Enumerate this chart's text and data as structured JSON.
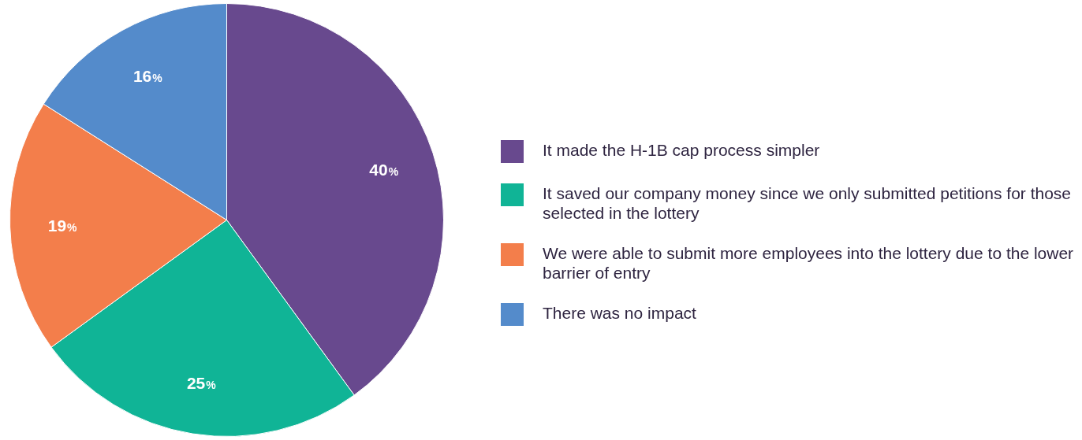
{
  "chart_data": {
    "type": "pie",
    "categories": [
      "It made the H-1B cap process simpler",
      "It saved our company money since we only submitted petitions for those selected in the lottery",
      "We were able to submit more employees into the lottery due to the lower barrier of entry",
      "There was no impact"
    ],
    "values": [
      40,
      25,
      19,
      16
    ],
    "colors": [
      "#68498e",
      "#10b496",
      "#f37e4b",
      "#548bcb"
    ],
    "value_labels": [
      "40%",
      "25%",
      "19%",
      "16%"
    ],
    "legend": "right"
  }
}
